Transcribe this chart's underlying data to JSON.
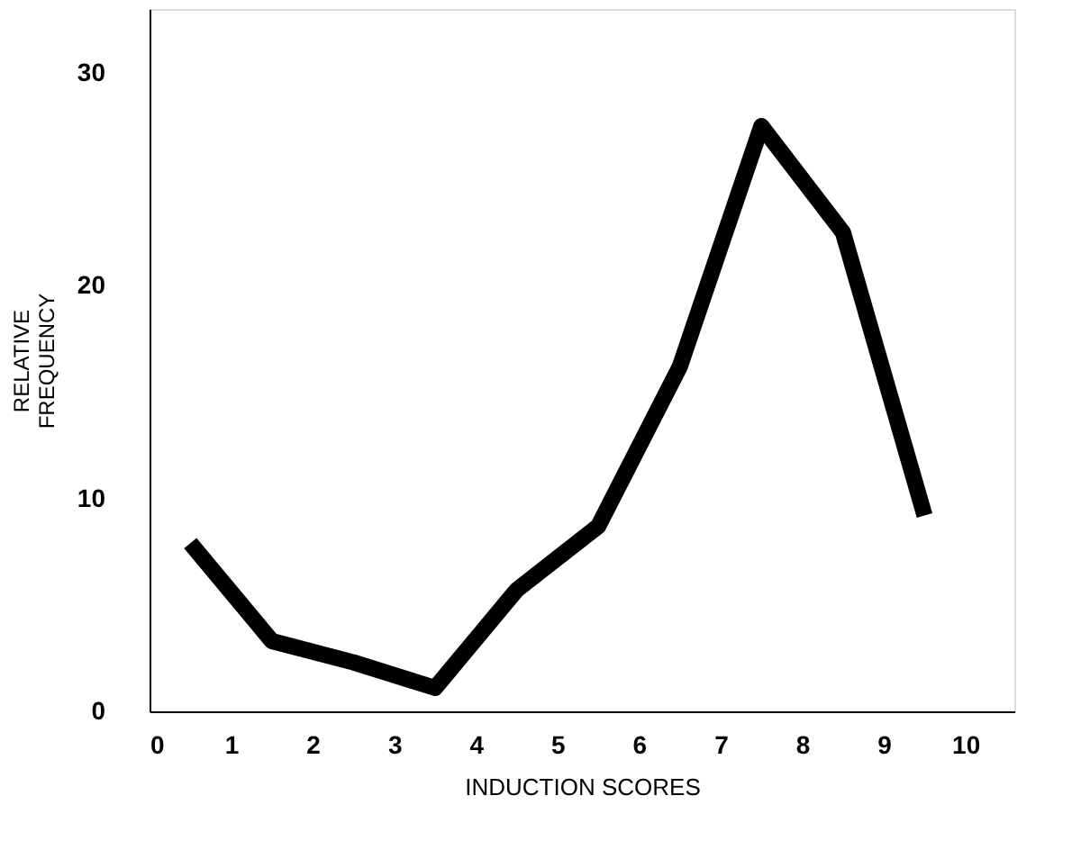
{
  "chart_data": {
    "type": "line",
    "xlabel": "INDUCTION SCORES",
    "ylabel": "RELATIVE FREQUENCY",
    "x": [
      0.5,
      1.5,
      2.5,
      3.5,
      4.5,
      5.5,
      6.5,
      7.5,
      8.5,
      9.5
    ],
    "series": [
      {
        "color": "#000000",
        "values": [
          7.9,
          3.3,
          2.3,
          1.1,
          5.7,
          8.7,
          16.2,
          27.5,
          22.5,
          9.2
        ]
      }
    ],
    "xlim": [
      0,
      10.6
    ],
    "xticks": [
      0,
      1,
      2,
      3,
      4,
      5,
      6,
      7,
      8,
      9,
      10
    ],
    "ylim": [
      0,
      33
    ],
    "yticks": [
      0,
      10,
      20,
      30
    ],
    "grid": false,
    "marker": "none",
    "line_style": "solid"
  }
}
